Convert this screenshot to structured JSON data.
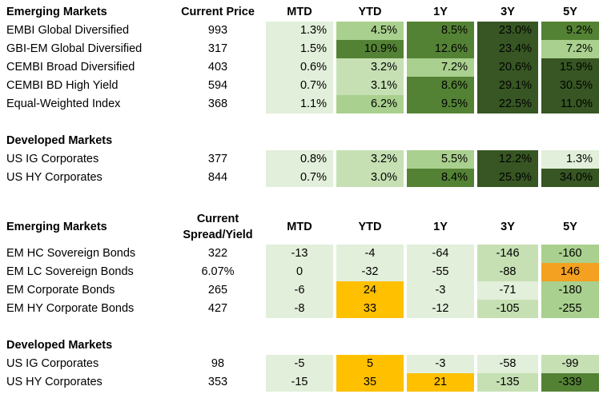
{
  "colors": {
    "g1": "#e2efda",
    "g2": "#c6e0b4",
    "g3": "#a9d08e",
    "g4": "#70ad47",
    "g5": "#548235",
    "g6": "#375623",
    "orange_light": "#ffc000",
    "orange_dark": "#f4a020",
    "white": "#ffffff"
  },
  "table1": {
    "headers": [
      "Emerging Markets",
      "Current Price",
      "MTD",
      "YTD",
      "1Y",
      "3Y",
      "5Y"
    ],
    "rows": [
      {
        "name": "EMBI Global Diversified",
        "price": "993",
        "vals": [
          "1.3%",
          "4.5%",
          "8.5%",
          "23.0%",
          "9.2%"
        ],
        "shades": [
          "g1",
          "g3",
          "g5",
          "g6",
          "g5"
        ]
      },
      {
        "name": "GBI-EM Global Diversified",
        "price": "317",
        "vals": [
          "1.5%",
          "10.9%",
          "12.6%",
          "23.4%",
          "7.2%"
        ],
        "shades": [
          "g1",
          "g5",
          "g5",
          "g6",
          "g3"
        ]
      },
      {
        "name": "CEMBI Broad Diversified",
        "price": "403",
        "vals": [
          "0.6%",
          "3.2%",
          "7.2%",
          "20.6%",
          "15.9%"
        ],
        "shades": [
          "g1",
          "g2",
          "g3",
          "g6",
          "g6"
        ]
      },
      {
        "name": "CEMBI BD High Yield",
        "price": "594",
        "vals": [
          "0.7%",
          "3.1%",
          "8.6%",
          "29.1%",
          "30.5%"
        ],
        "shades": [
          "g1",
          "g2",
          "g5",
          "g6",
          "g6"
        ]
      },
      {
        "name": "Equal-Weighted Index",
        "price": "368",
        "vals": [
          "1.1%",
          "6.2%",
          "9.5%",
          "22.5%",
          "11.0%"
        ],
        "shades": [
          "g1",
          "g3",
          "g5",
          "g6",
          "g6"
        ]
      }
    ],
    "section2": "Developed Markets",
    "rows2": [
      {
        "name": "US IG Corporates",
        "price": "377",
        "vals": [
          "0.8%",
          "3.2%",
          "5.5%",
          "12.2%",
          "1.3%"
        ],
        "shades": [
          "g1",
          "g2",
          "g3",
          "g6",
          "g1"
        ]
      },
      {
        "name": "US HY Corporates",
        "price": "844",
        "vals": [
          "0.7%",
          "3.0%",
          "8.4%",
          "25.9%",
          "34.0%"
        ],
        "shades": [
          "g1",
          "g2",
          "g5",
          "g6",
          "g6"
        ]
      }
    ]
  },
  "table2": {
    "headers": [
      "Emerging Markets",
      "Current",
      "Spread/Yield",
      "MTD",
      "YTD",
      "1Y",
      "3Y",
      "5Y"
    ],
    "rows": [
      {
        "name": "EM HC Sovereign Bonds",
        "price": "322",
        "vals": [
          "-13",
          "-4",
          "-64",
          "-146",
          "-160"
        ],
        "shades": [
          "g1",
          "g1",
          "g1",
          "g2",
          "g3"
        ]
      },
      {
        "name": "EM LC Sovereign Bonds",
        "price": "6.07%",
        "vals": [
          "0",
          "-32",
          "-55",
          "-88",
          "146"
        ],
        "shades": [
          "g1",
          "g1",
          "g1",
          "g2",
          "orange_dark"
        ]
      },
      {
        "name": "EM Corporate Bonds",
        "price": "265",
        "vals": [
          "-6",
          "24",
          "-3",
          "-71",
          "-180"
        ],
        "shades": [
          "g1",
          "orange_light",
          "g1",
          "g1",
          "g3"
        ]
      },
      {
        "name": "EM HY Corporate Bonds",
        "price": "427",
        "vals": [
          "-8",
          "33",
          "-12",
          "-105",
          "-255"
        ],
        "shades": [
          "g1",
          "orange_light",
          "g1",
          "g2",
          "g3"
        ]
      }
    ],
    "section2": "Developed Markets",
    "rows2": [
      {
        "name": "US IG Corporates",
        "price": "98",
        "vals": [
          "-5",
          "5",
          "-3",
          "-58",
          "-99"
        ],
        "shades": [
          "g1",
          "orange_light",
          "g1",
          "g1",
          "g2"
        ]
      },
      {
        "name": "US HY Corporates",
        "price": "353",
        "vals": [
          "-15",
          "35",
          "21",
          "-135",
          "-339"
        ],
        "shades": [
          "g1",
          "orange_light",
          "orange_light",
          "g2",
          "g5"
        ]
      }
    ]
  },
  "chart_data": [
    {
      "type": "table",
      "title": "",
      "columns": [
        "Emerging Markets",
        "Current Price",
        "MTD",
        "YTD",
        "1Y",
        "3Y",
        "5Y"
      ],
      "rows": [
        [
          "EMBI Global Diversified",
          "993",
          "1.3%",
          "4.5%",
          "8.5%",
          "23.0%",
          "9.2%"
        ],
        [
          "GBI-EM Global Diversified",
          "317",
          "1.5%",
          "10.9%",
          "12.6%",
          "23.4%",
          "7.2%"
        ],
        [
          "CEMBI Broad Diversified",
          "403",
          "0.6%",
          "3.2%",
          "7.2%",
          "20.6%",
          "15.9%"
        ],
        [
          "CEMBI BD High Yield",
          "594",
          "0.7%",
          "3.1%",
          "8.6%",
          "29.1%",
          "30.5%"
        ],
        [
          "Equal-Weighted Index",
          "368",
          "1.1%",
          "6.2%",
          "9.5%",
          "22.5%",
          "11.0%"
        ],
        [
          "Developed Markets",
          "",
          "",
          "",
          "",
          "",
          ""
        ],
        [
          "US IG Corporates",
          "377",
          "0.8%",
          "3.2%",
          "5.5%",
          "12.2%",
          "1.3%"
        ],
        [
          "US HY Corporates",
          "844",
          "0.7%",
          "3.0%",
          "8.4%",
          "25.9%",
          "34.0%"
        ]
      ]
    },
    {
      "type": "table",
      "title": "",
      "columns": [
        "Emerging Markets",
        "Current Spread/Yield",
        "MTD",
        "YTD",
        "1Y",
        "3Y",
        "5Y"
      ],
      "rows": [
        [
          "EM HC Sovereign Bonds",
          "322",
          "-13",
          "-4",
          "-64",
          "-146",
          "-160"
        ],
        [
          "EM LC Sovereign Bonds",
          "6.07%",
          "0",
          "-32",
          "-55",
          "-88",
          "146"
        ],
        [
          "EM Corporate Bonds",
          "265",
          "-6",
          "24",
          "-3",
          "-71",
          "-180"
        ],
        [
          "EM HY Corporate Bonds",
          "427",
          "-8",
          "33",
          "-12",
          "-105",
          "-255"
        ],
        [
          "Developed Markets",
          "",
          "",
          "",
          "",
          "",
          ""
        ],
        [
          "US IG Corporates",
          "98",
          "-5",
          "5",
          "-3",
          "-58",
          "-99"
        ],
        [
          "US HY Corporates",
          "353",
          "-15",
          "35",
          "21",
          "-135",
          "-339"
        ]
      ]
    }
  ]
}
